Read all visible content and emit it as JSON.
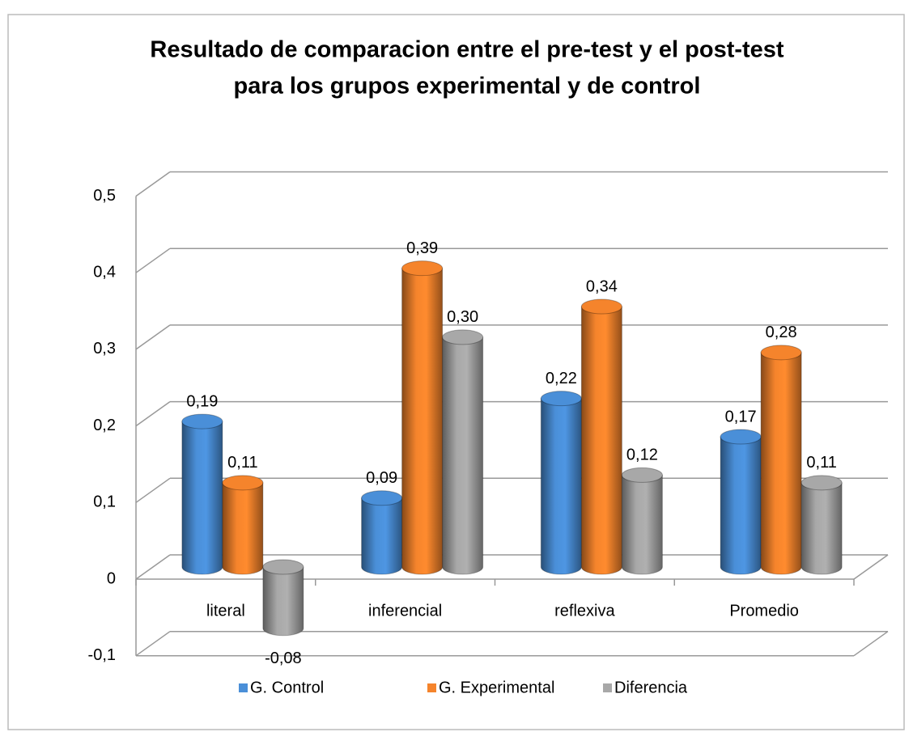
{
  "chart_data": {
    "type": "bar3d",
    "title": "Resultado de comparacion entre el pre-test y el post-test",
    "subtitle": "para los grupos  experimental y de control",
    "categories": [
      "literal",
      "inferencial",
      "reflexiva",
      "Promedio"
    ],
    "series": [
      {
        "name": "G. Control",
        "color": "#4a8fd8",
        "values": [
          0.19,
          0.09,
          0.22,
          0.17
        ],
        "value_labels": [
          "0,19",
          "0,09",
          "0,22",
          "0,17"
        ]
      },
      {
        "name": "G. Experimental",
        "color": "#f5842c",
        "values": [
          0.11,
          0.39,
          0.34,
          0.28
        ],
        "value_labels": [
          "0,11",
          "0,39",
          "0,34",
          "0,28"
        ]
      },
      {
        "name": "Diferencia",
        "color": "#a8a8a8",
        "values": [
          -0.08,
          0.3,
          0.12,
          0.11
        ],
        "value_labels": [
          "-0,08",
          "0,30",
          "0,12",
          "0,11"
        ]
      }
    ],
    "ylim": [
      -0.1,
      0.5
    ],
    "yticks": [
      {
        "value": -0.1,
        "label": "-0,1"
      },
      0,
      {
        "value": 0.1,
        "label": "0,1"
      },
      {
        "value": 0.2,
        "label": "0,2"
      },
      {
        "value": 0.3,
        "label": "0,3"
      },
      {
        "value": 0.4,
        "label": "0,4"
      },
      {
        "value": 0.5,
        "label": "0,5"
      }
    ],
    "grid": true,
    "legend": "bottom"
  }
}
